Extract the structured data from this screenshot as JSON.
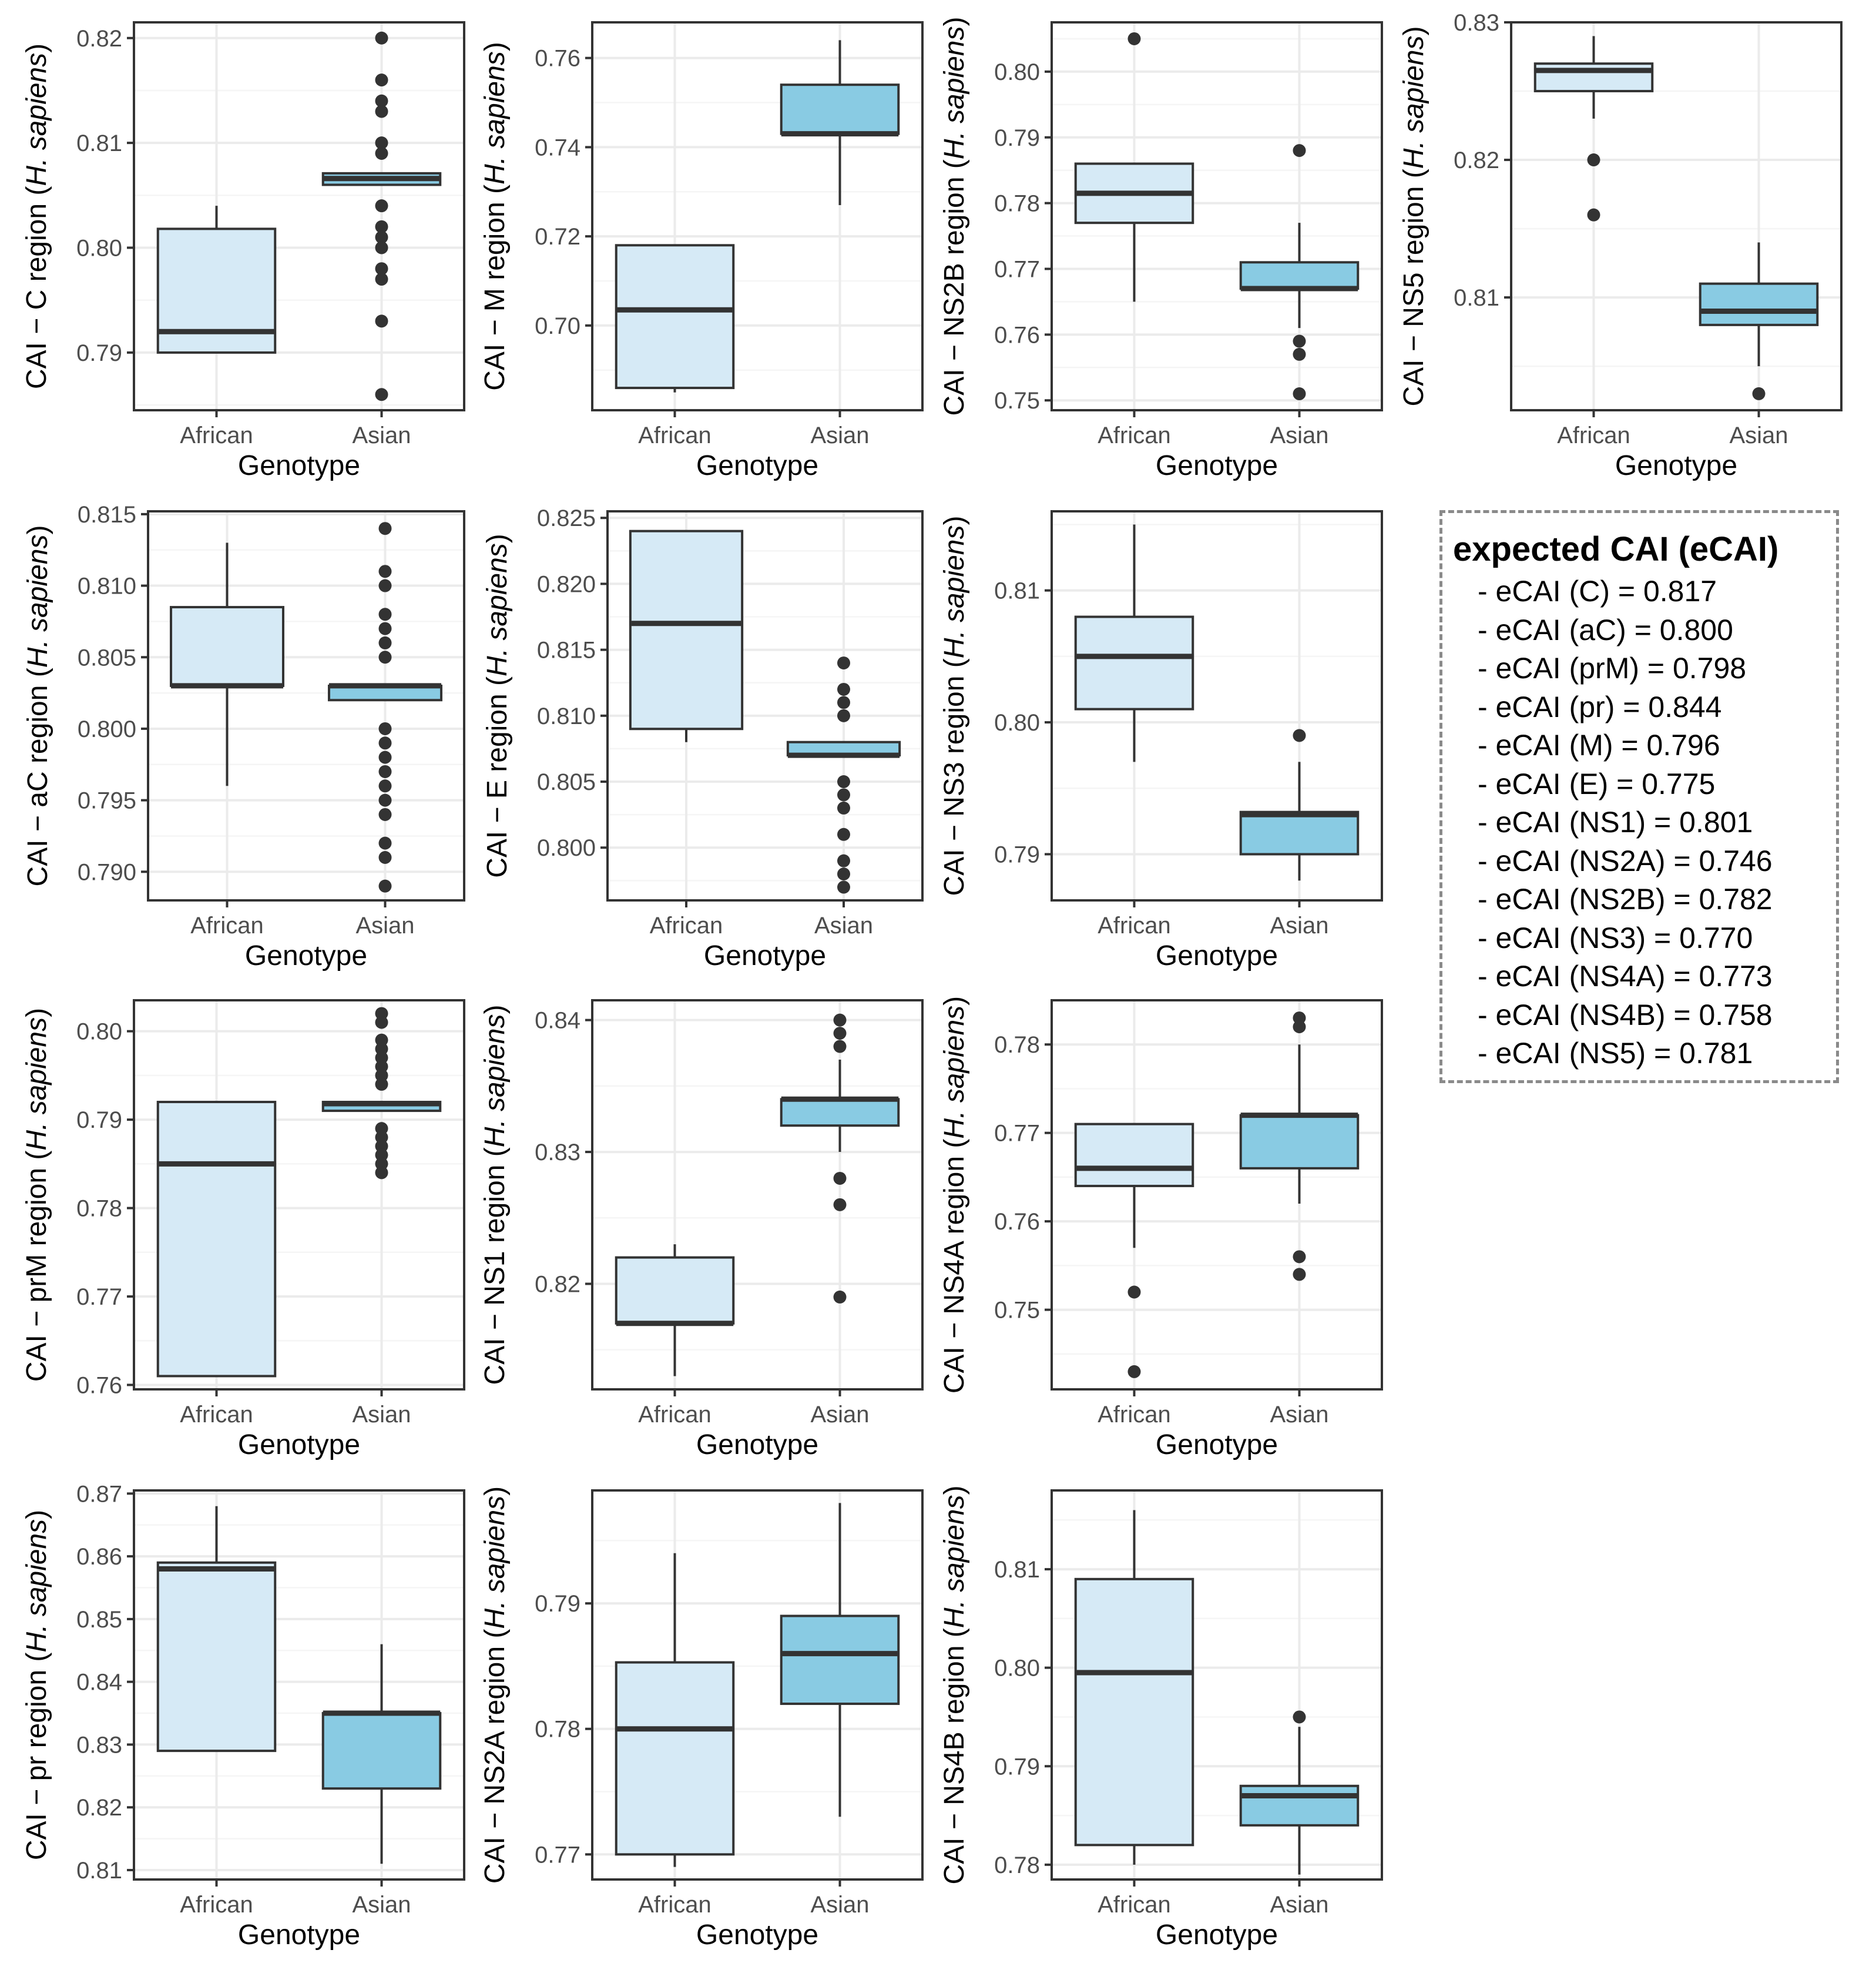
{
  "chart_data": [
    {
      "type": "box",
      "region": "C",
      "ylabel_prefix": "CAI − C region (",
      "ylabel_italic": "H. sapiens",
      "ylabel_suffix": ")",
      "xlabel": "Genotype",
      "categories": [
        "African",
        "Asian"
      ],
      "ylim": [
        0.7845,
        0.8215
      ],
      "yticks": [
        0.79,
        0.8,
        0.81,
        0.82
      ],
      "yticklabels": [
        "0.79",
        "0.80",
        "0.81",
        "0.82"
      ],
      "boxes": [
        {
          "min": 0.79,
          "q1": 0.79,
          "median": 0.792,
          "q3": 0.8018,
          "max": 0.804,
          "outliers": []
        },
        {
          "min": 0.806,
          "q1": 0.806,
          "median": 0.8066,
          "q3": 0.8071,
          "max": 0.8071,
          "outliers": [
            0.82,
            0.816,
            0.814,
            0.813,
            0.81,
            0.809,
            0.804,
            0.802,
            0.801,
            0.8,
            0.798,
            0.797,
            0.793,
            0.786
          ]
        }
      ]
    },
    {
      "type": "box",
      "region": "M",
      "ylabel_prefix": "CAI − M region (",
      "ylabel_italic": "H. sapiens",
      "ylabel_suffix": ")",
      "xlabel": "Genotype",
      "categories": [
        "African",
        "Asian"
      ],
      "ylim": [
        0.681,
        0.768
      ],
      "yticks": [
        0.7,
        0.72,
        0.74,
        0.76
      ],
      "yticklabels": [
        "0.70",
        "0.72",
        "0.74",
        "0.76"
      ],
      "boxes": [
        {
          "min": 0.685,
          "q1": 0.686,
          "median": 0.7035,
          "q3": 0.718,
          "max": 0.718,
          "outliers": []
        },
        {
          "min": 0.727,
          "q1": 0.743,
          "median": 0.743,
          "q3": 0.754,
          "max": 0.764,
          "outliers": []
        }
      ]
    },
    {
      "type": "box",
      "region": "NS2B",
      "ylabel_prefix": "CAI − NS2B region (",
      "ylabel_italic": "H. sapiens",
      "ylabel_suffix": ")",
      "xlabel": "Genotype",
      "categories": [
        "African",
        "Asian"
      ],
      "ylim": [
        0.7485,
        0.8075
      ],
      "yticks": [
        0.75,
        0.76,
        0.77,
        0.78,
        0.79,
        0.8
      ],
      "yticklabels": [
        "0.75",
        "0.76",
        "0.77",
        "0.78",
        "0.79",
        "0.80"
      ],
      "boxes": [
        {
          "min": 0.765,
          "q1": 0.777,
          "median": 0.7815,
          "q3": 0.786,
          "max": 0.786,
          "outliers": [
            0.805
          ]
        },
        {
          "min": 0.761,
          "q1": 0.767,
          "median": 0.767,
          "q3": 0.771,
          "max": 0.777,
          "outliers": [
            0.788,
            0.759,
            0.757,
            0.751
          ]
        }
      ]
    },
    {
      "type": "box",
      "region": "NS5",
      "ylabel_prefix": "CAI − NS5 region (",
      "ylabel_italic": "H. sapiens",
      "ylabel_suffix": ")",
      "xlabel": "Genotype",
      "categories": [
        "African",
        "Asian"
      ],
      "ylim": [
        0.8018,
        0.83
      ],
      "yticks": [
        0.81,
        0.82,
        0.83
      ],
      "yticklabels": [
        "0.81",
        "0.82",
        "0.83"
      ],
      "boxes": [
        {
          "min": 0.823,
          "q1": 0.825,
          "median": 0.8265,
          "q3": 0.827,
          "max": 0.829,
          "outliers": [
            0.82,
            0.816
          ]
        },
        {
          "min": 0.805,
          "q1": 0.808,
          "median": 0.809,
          "q3": 0.811,
          "max": 0.814,
          "outliers": [
            0.803
          ]
        }
      ]
    },
    {
      "type": "box",
      "region": "aC",
      "ylabel_prefix": "CAI − aC region (",
      "ylabel_italic": "H. sapiens",
      "ylabel_suffix": ")",
      "xlabel": "Genotype",
      "categories": [
        "African",
        "Asian"
      ],
      "ylim": [
        0.788,
        0.8152
      ],
      "yticks": [
        0.79,
        0.795,
        0.8,
        0.805,
        0.81,
        0.815
      ],
      "yticklabels": [
        "0.790",
        "0.795",
        "0.800",
        "0.805",
        "0.810",
        "0.815"
      ],
      "boxes": [
        {
          "min": 0.796,
          "q1": 0.803,
          "median": 0.803,
          "q3": 0.8085,
          "max": 0.813,
          "outliers": []
        },
        {
          "min": 0.802,
          "q1": 0.802,
          "median": 0.803,
          "q3": 0.803,
          "max": 0.803,
          "outliers": [
            0.814,
            0.811,
            0.81,
            0.808,
            0.807,
            0.806,
            0.805,
            0.8,
            0.799,
            0.798,
            0.797,
            0.796,
            0.795,
            0.794,
            0.792,
            0.791,
            0.789
          ]
        }
      ]
    },
    {
      "type": "box",
      "region": "E",
      "ylabel_prefix": "CAI − E region (",
      "ylabel_italic": "H. sapiens",
      "ylabel_suffix": ")",
      "xlabel": "Genotype",
      "categories": [
        "African",
        "Asian"
      ],
      "ylim": [
        0.796,
        0.8255
      ],
      "yticks": [
        0.8,
        0.805,
        0.81,
        0.815,
        0.82,
        0.825
      ],
      "yticklabels": [
        "0.800",
        "0.805",
        "0.810",
        "0.815",
        "0.820",
        "0.825"
      ],
      "boxes": [
        {
          "min": 0.808,
          "q1": 0.809,
          "median": 0.817,
          "q3": 0.824,
          "max": 0.824,
          "outliers": []
        },
        {
          "min": 0.807,
          "q1": 0.807,
          "median": 0.807,
          "q3": 0.808,
          "max": 0.808,
          "outliers": [
            0.814,
            0.812,
            0.811,
            0.81,
            0.805,
            0.804,
            0.803,
            0.801,
            0.799,
            0.798,
            0.797
          ]
        }
      ]
    },
    {
      "type": "box",
      "region": "NS3",
      "ylabel_prefix": "CAI − NS3 region (",
      "ylabel_italic": "H. sapiens",
      "ylabel_suffix": ")",
      "xlabel": "Genotype",
      "categories": [
        "African",
        "Asian"
      ],
      "ylim": [
        0.7865,
        0.816
      ],
      "yticks": [
        0.79,
        0.8,
        0.81
      ],
      "yticklabels": [
        "0.79",
        "0.80",
        "0.81"
      ],
      "boxes": [
        {
          "min": 0.797,
          "q1": 0.801,
          "median": 0.805,
          "q3": 0.808,
          "max": 0.815,
          "outliers": []
        },
        {
          "min": 0.788,
          "q1": 0.79,
          "median": 0.793,
          "q3": 0.7932,
          "max": 0.797,
          "outliers": [
            0.799
          ]
        }
      ]
    },
    {
      "type": "box",
      "region": "prM",
      "ylabel_prefix": "CAI − prM region (",
      "ylabel_italic": "H. sapiens",
      "ylabel_suffix": ")",
      "xlabel": "Genotype",
      "categories": [
        "African",
        "Asian"
      ],
      "ylim": [
        0.7595,
        0.8035
      ],
      "yticks": [
        0.76,
        0.77,
        0.78,
        0.79,
        0.8
      ],
      "yticklabels": [
        "0.76",
        "0.77",
        "0.78",
        "0.79",
        "0.80"
      ],
      "boxes": [
        {
          "min": 0.761,
          "q1": 0.761,
          "median": 0.785,
          "q3": 0.792,
          "max": 0.792,
          "outliers": []
        },
        {
          "min": 0.791,
          "q1": 0.791,
          "median": 0.7918,
          "q3": 0.792,
          "max": 0.792,
          "outliers": [
            0.802,
            0.801,
            0.799,
            0.798,
            0.797,
            0.796,
            0.795,
            0.794,
            0.789,
            0.788,
            0.787,
            0.786,
            0.785,
            0.784
          ]
        }
      ]
    },
    {
      "type": "box",
      "region": "NS1",
      "ylabel_prefix": "CAI − NS1 region (",
      "ylabel_italic": "H. sapiens",
      "ylabel_suffix": ")",
      "xlabel": "Genotype",
      "categories": [
        "African",
        "Asian"
      ],
      "ylim": [
        0.812,
        0.8415
      ],
      "yticks": [
        0.82,
        0.83,
        0.84
      ],
      "yticklabels": [
        "0.82",
        "0.83",
        "0.84"
      ],
      "boxes": [
        {
          "min": 0.813,
          "q1": 0.817,
          "median": 0.817,
          "q3": 0.822,
          "max": 0.823,
          "outliers": []
        },
        {
          "min": 0.83,
          "q1": 0.832,
          "median": 0.834,
          "q3": 0.834,
          "max": 0.837,
          "outliers": [
            0.84,
            0.839,
            0.838,
            0.828,
            0.826,
            0.819
          ]
        }
      ]
    },
    {
      "type": "box",
      "region": "NS4A",
      "ylabel_prefix": "CAI − NS4A region (",
      "ylabel_italic": "H. sapiens",
      "ylabel_suffix": ")",
      "xlabel": "Genotype",
      "categories": [
        "African",
        "Asian"
      ],
      "ylim": [
        0.741,
        0.785
      ],
      "yticks": [
        0.75,
        0.76,
        0.77,
        0.78
      ],
      "yticklabels": [
        "0.75",
        "0.76",
        "0.77",
        "0.78"
      ],
      "boxes": [
        {
          "min": 0.757,
          "q1": 0.764,
          "median": 0.766,
          "q3": 0.771,
          "max": 0.771,
          "outliers": [
            0.752,
            0.743
          ]
        },
        {
          "min": 0.762,
          "q1": 0.766,
          "median": 0.772,
          "q3": 0.772,
          "max": 0.78,
          "outliers": [
            0.783,
            0.782,
            0.756,
            0.754
          ]
        }
      ]
    },
    {
      "type": "box",
      "region": "pr",
      "ylabel_prefix": "CAI − pr region (",
      "ylabel_italic": "H. sapiens",
      "ylabel_suffix": ")",
      "xlabel": "Genotype",
      "categories": [
        "African",
        "Asian"
      ],
      "ylim": [
        0.8085,
        0.8705
      ],
      "yticks": [
        0.81,
        0.82,
        0.83,
        0.84,
        0.85,
        0.86,
        0.87
      ],
      "yticklabels": [
        "0.81",
        "0.82",
        "0.83",
        "0.84",
        "0.85",
        "0.86",
        "0.87"
      ],
      "boxes": [
        {
          "min": 0.829,
          "q1": 0.829,
          "median": 0.858,
          "q3": 0.859,
          "max": 0.868,
          "outliers": []
        },
        {
          "min": 0.811,
          "q1": 0.823,
          "median": 0.835,
          "q3": 0.835,
          "max": 0.846,
          "outliers": []
        }
      ]
    },
    {
      "type": "box",
      "region": "NS2A",
      "ylabel_prefix": "CAI − NS2A region (",
      "ylabel_italic": "H. sapiens",
      "ylabel_suffix": ")",
      "xlabel": "Genotype",
      "categories": [
        "African",
        "Asian"
      ],
      "ylim": [
        0.768,
        0.799
      ],
      "yticks": [
        0.77,
        0.78,
        0.79
      ],
      "yticklabels": [
        "0.77",
        "0.78",
        "0.79"
      ],
      "boxes": [
        {
          "min": 0.769,
          "q1": 0.77,
          "median": 0.78,
          "q3": 0.7853,
          "max": 0.794,
          "outliers": []
        },
        {
          "min": 0.773,
          "q1": 0.782,
          "median": 0.786,
          "q3": 0.789,
          "max": 0.798,
          "outliers": []
        }
      ]
    },
    {
      "type": "box",
      "region": "NS4B",
      "ylabel_prefix": "CAI − NS4B region (",
      "ylabel_italic": "H. sapiens",
      "ylabel_suffix": ")",
      "xlabel": "Genotype",
      "categories": [
        "African",
        "Asian"
      ],
      "ylim": [
        0.7785,
        0.818
      ],
      "yticks": [
        0.78,
        0.79,
        0.8,
        0.81
      ],
      "yticklabels": [
        "0.78",
        "0.79",
        "0.80",
        "0.81"
      ],
      "boxes": [
        {
          "min": 0.78,
          "q1": 0.782,
          "median": 0.7995,
          "q3": 0.809,
          "max": 0.816,
          "outliers": []
        },
        {
          "min": 0.779,
          "q1": 0.784,
          "median": 0.787,
          "q3": 0.788,
          "max": 0.794,
          "outliers": [
            0.795
          ]
        }
      ]
    }
  ],
  "legend": {
    "title": "expected CAI (eCAI)",
    "items": [
      "- eCAI (C) = 0.817",
      "- eCAI (aC) = 0.800",
      "- eCAI (prM) = 0.798",
      "- eCAI (pr) = 0.844",
      "- eCAI (M) = 0.796",
      "- eCAI (E) = 0.775",
      "- eCAI (NS1) = 0.801",
      "- eCAI (NS2A) = 0.746",
      "- eCAI (NS2B) = 0.782",
      "- eCAI (NS3) = 0.770",
      "- eCAI (NS4A) = 0.773",
      "- eCAI (NS4B) = 0.758",
      "- eCAI (NS5) = 0.781"
    ]
  },
  "colors": {
    "african_fill": "#d6eaf6",
    "asian_fill": "#89cbe3",
    "box_stroke": "#333333",
    "grid_major": "#ebebeb",
    "grid_minor": "#f5f5f5",
    "panel_border": "#333333",
    "tick_text": "#4d4d4d",
    "title_text": "#000000"
  }
}
